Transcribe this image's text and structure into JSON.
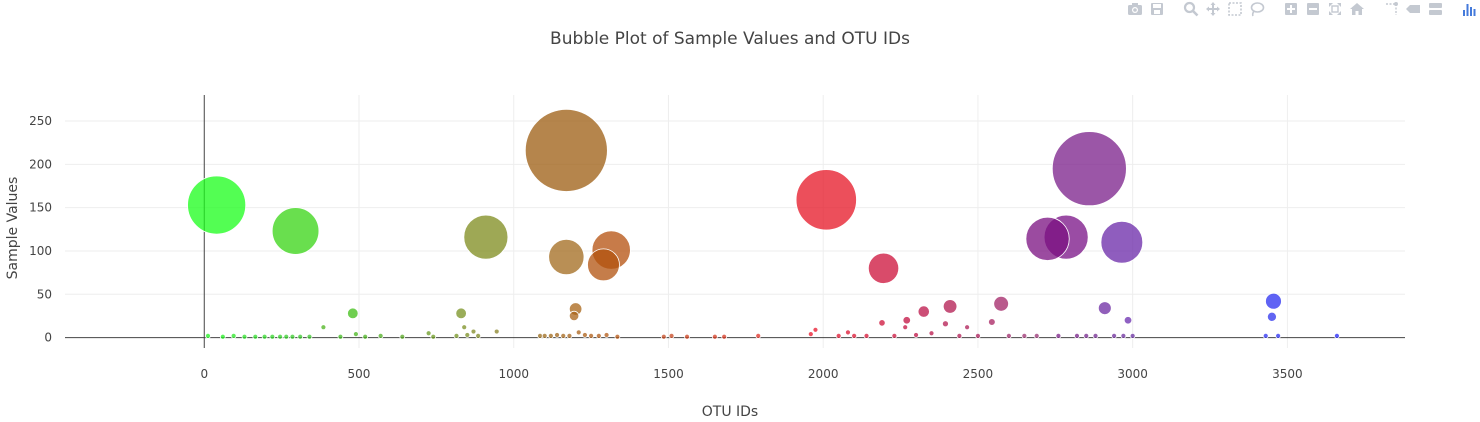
{
  "modebar": {
    "buttons": [
      {
        "name": "download-plot-icon",
        "group": 1
      },
      {
        "name": "save-cloud-icon",
        "group": 1
      },
      {
        "name": "zoom-icon",
        "group": 2
      },
      {
        "name": "pan-icon",
        "group": 2
      },
      {
        "name": "box-select-icon",
        "group": 2
      },
      {
        "name": "lasso-select-icon",
        "group": 2
      },
      {
        "name": "zoom-in-icon",
        "group": 3
      },
      {
        "name": "zoom-out-icon",
        "group": 3
      },
      {
        "name": "autoscale-icon",
        "group": 3
      },
      {
        "name": "reset-axes-icon",
        "group": 3
      },
      {
        "name": "spike-lines-icon",
        "group": 4
      },
      {
        "name": "hover-closest-icon",
        "group": 4
      },
      {
        "name": "hover-compare-icon",
        "group": 4
      },
      {
        "name": "plotly-logo-icon",
        "group": 5
      }
    ],
    "icon_color": "#c4c9d1",
    "logo_color": "#447adb"
  },
  "chart_data": {
    "type": "scatter",
    "title": "Bubble Plot of Sample Values and OTU IDs",
    "xlabel": "OTU IDs",
    "ylabel": "Sample Values",
    "xlim": [
      -450,
      3880
    ],
    "ylim": [
      -12,
      280
    ],
    "xticks": [
      0,
      500,
      1000,
      1500,
      2000,
      2500,
      3000,
      3500
    ],
    "yticks": [
      0,
      50,
      100,
      150,
      200,
      250
    ],
    "grid": true,
    "legend": "none",
    "marker_opacity": 0.75,
    "points": [
      {
        "x": 40,
        "y": 153,
        "color": "#1afd1a"
      },
      {
        "x": 295,
        "y": 123,
        "color": "#37d413"
      },
      {
        "x": 480,
        "y": 28,
        "color": "#3fbd16"
      },
      {
        "x": 385,
        "y": 12,
        "color": "#4bb31c"
      },
      {
        "x": 12,
        "y": 2,
        "color": "#22f122"
      },
      {
        "x": 60,
        "y": 1,
        "color": "#22ee22"
      },
      {
        "x": 95,
        "y": 2,
        "color": "#28e624"
      },
      {
        "x": 130,
        "y": 1,
        "color": "#2ce228"
      },
      {
        "x": 165,
        "y": 1,
        "color": "#2dde2a"
      },
      {
        "x": 195,
        "y": 1,
        "color": "#30da2a"
      },
      {
        "x": 220,
        "y": 1,
        "color": "#33d52b"
      },
      {
        "x": 245,
        "y": 1,
        "color": "#34d22c"
      },
      {
        "x": 265,
        "y": 1,
        "color": "#36cf2c"
      },
      {
        "x": 285,
        "y": 1,
        "color": "#38cb2c"
      },
      {
        "x": 310,
        "y": 1,
        "color": "#3ac82d"
      },
      {
        "x": 340,
        "y": 1,
        "color": "#3cc42d"
      },
      {
        "x": 440,
        "y": 1,
        "color": "#40ba20"
      },
      {
        "x": 490,
        "y": 4,
        "color": "#47b51d"
      },
      {
        "x": 520,
        "y": 1,
        "color": "#4ab21f"
      },
      {
        "x": 570,
        "y": 2,
        "color": "#4dad20"
      },
      {
        "x": 640,
        "y": 1,
        "color": "#55a522"
      },
      {
        "x": 910,
        "y": 116,
        "color": "#7e8b1c"
      },
      {
        "x": 830,
        "y": 28,
        "color": "#789121"
      },
      {
        "x": 840,
        "y": 12,
        "color": "#7b8f22"
      },
      {
        "x": 870,
        "y": 7,
        "color": "#808a24"
      },
      {
        "x": 945,
        "y": 7,
        "color": "#888226"
      },
      {
        "x": 725,
        "y": 5,
        "color": "#6a9b23"
      },
      {
        "x": 740,
        "y": 1,
        "color": "#6c9a22"
      },
      {
        "x": 815,
        "y": 2,
        "color": "#749322"
      },
      {
        "x": 850,
        "y": 3,
        "color": "#7a8e23"
      },
      {
        "x": 885,
        "y": 2,
        "color": "#7f8a24"
      },
      {
        "x": 1170,
        "y": 216,
        "color": "#9c5c10"
      },
      {
        "x": 1170,
        "y": 93,
        "color": "#a26a1c"
      },
      {
        "x": 1315,
        "y": 101,
        "color": "#b44f0c"
      },
      {
        "x": 1290,
        "y": 84,
        "color": "#b2520e"
      },
      {
        "x": 1200,
        "y": 33,
        "color": "#a86416"
      },
      {
        "x": 1195,
        "y": 25,
        "color": "#a96317"
      },
      {
        "x": 1210,
        "y": 6,
        "color": "#aa6118"
      },
      {
        "x": 1085,
        "y": 2,
        "color": "#9a6c1c"
      },
      {
        "x": 1100,
        "y": 2,
        "color": "#9c6a1b"
      },
      {
        "x": 1120,
        "y": 2,
        "color": "#9f681a"
      },
      {
        "x": 1140,
        "y": 3,
        "color": "#a1661a"
      },
      {
        "x": 1160,
        "y": 2,
        "color": "#a3651a"
      },
      {
        "x": 1180,
        "y": 2,
        "color": "#a56319"
      },
      {
        "x": 1230,
        "y": 3,
        "color": "#ac5f17"
      },
      {
        "x": 1250,
        "y": 2,
        "color": "#ae5c16"
      },
      {
        "x": 1275,
        "y": 2,
        "color": "#b05a15"
      },
      {
        "x": 1300,
        "y": 3,
        "color": "#b25814"
      },
      {
        "x": 1335,
        "y": 1,
        "color": "#b55513"
      },
      {
        "x": 1485,
        "y": 1,
        "color": "#c44820"
      },
      {
        "x": 1510,
        "y": 2,
        "color": "#c7451f"
      },
      {
        "x": 1560,
        "y": 1,
        "color": "#cc401e"
      },
      {
        "x": 1650,
        "y": 1,
        "color": "#d33a20"
      },
      {
        "x": 1680,
        "y": 1,
        "color": "#d63722"
      },
      {
        "x": 1790,
        "y": 2,
        "color": "#df2f25"
      },
      {
        "x": 2010,
        "y": 159,
        "color": "#e61424"
      },
      {
        "x": 2195,
        "y": 80,
        "color": "#cc0f38"
      },
      {
        "x": 2190,
        "y": 17,
        "color": "#cd1139"
      },
      {
        "x": 2270,
        "y": 20,
        "color": "#c20f40"
      },
      {
        "x": 2265,
        "y": 12,
        "color": "#c31040"
      },
      {
        "x": 2325,
        "y": 30,
        "color": "#bb1348"
      },
      {
        "x": 2410,
        "y": 36,
        "color": "#b2184f"
      },
      {
        "x": 2395,
        "y": 16,
        "color": "#b41a50"
      },
      {
        "x": 2465,
        "y": 12,
        "color": "#ad1c55"
      },
      {
        "x": 2545,
        "y": 18,
        "color": "#a72160"
      },
      {
        "x": 2575,
        "y": 39,
        "color": "#a12366"
      },
      {
        "x": 1975,
        "y": 9,
        "color": "#e8142a"
      },
      {
        "x": 1960,
        "y": 4,
        "color": "#e9162a"
      },
      {
        "x": 2080,
        "y": 6,
        "color": "#dc1330"
      },
      {
        "x": 2050,
        "y": 2,
        "color": "#df1530"
      },
      {
        "x": 2100,
        "y": 2,
        "color": "#da1432"
      },
      {
        "x": 2140,
        "y": 2,
        "color": "#d51334"
      },
      {
        "x": 2230,
        "y": 2,
        "color": "#c9123c"
      },
      {
        "x": 2300,
        "y": 3,
        "color": "#be1244"
      },
      {
        "x": 2350,
        "y": 5,
        "color": "#b81449"
      },
      {
        "x": 2440,
        "y": 2,
        "color": "#b01a52"
      },
      {
        "x": 2500,
        "y": 2,
        "color": "#aa1d5a"
      },
      {
        "x": 2600,
        "y": 2,
        "color": "#9e2a6a"
      },
      {
        "x": 2650,
        "y": 2,
        "color": "#9b2f6f"
      },
      {
        "x": 2690,
        "y": 2,
        "color": "#983374"
      },
      {
        "x": 2860,
        "y": 195,
        "color": "#7a1e8a"
      },
      {
        "x": 2785,
        "y": 116,
        "color": "#781085"
      },
      {
        "x": 2725,
        "y": 114,
        "color": "#7a0f80"
      },
      {
        "x": 2965,
        "y": 110,
        "color": "#6a27a8"
      },
      {
        "x": 2910,
        "y": 34,
        "color": "#6c2aa3"
      },
      {
        "x": 2985,
        "y": 20,
        "color": "#692caf"
      },
      {
        "x": 2760,
        "y": 2,
        "color": "#7a1d85"
      },
      {
        "x": 2820,
        "y": 2,
        "color": "#772288"
      },
      {
        "x": 2850,
        "y": 2,
        "color": "#74258c"
      },
      {
        "x": 2880,
        "y": 2,
        "color": "#712890"
      },
      {
        "x": 2940,
        "y": 2,
        "color": "#6c2b99"
      },
      {
        "x": 2970,
        "y": 2,
        "color": "#6a2c9c"
      },
      {
        "x": 3000,
        "y": 2,
        "color": "#672da0"
      },
      {
        "x": 3455,
        "y": 42,
        "color": "#2a2ff0"
      },
      {
        "x": 3450,
        "y": 24,
        "color": "#2c32ee"
      },
      {
        "x": 3430,
        "y": 2,
        "color": "#2a2ff0"
      },
      {
        "x": 3470,
        "y": 2,
        "color": "#2a2ff0"
      },
      {
        "x": 3660,
        "y": 2,
        "color": "#2326f5"
      }
    ]
  }
}
